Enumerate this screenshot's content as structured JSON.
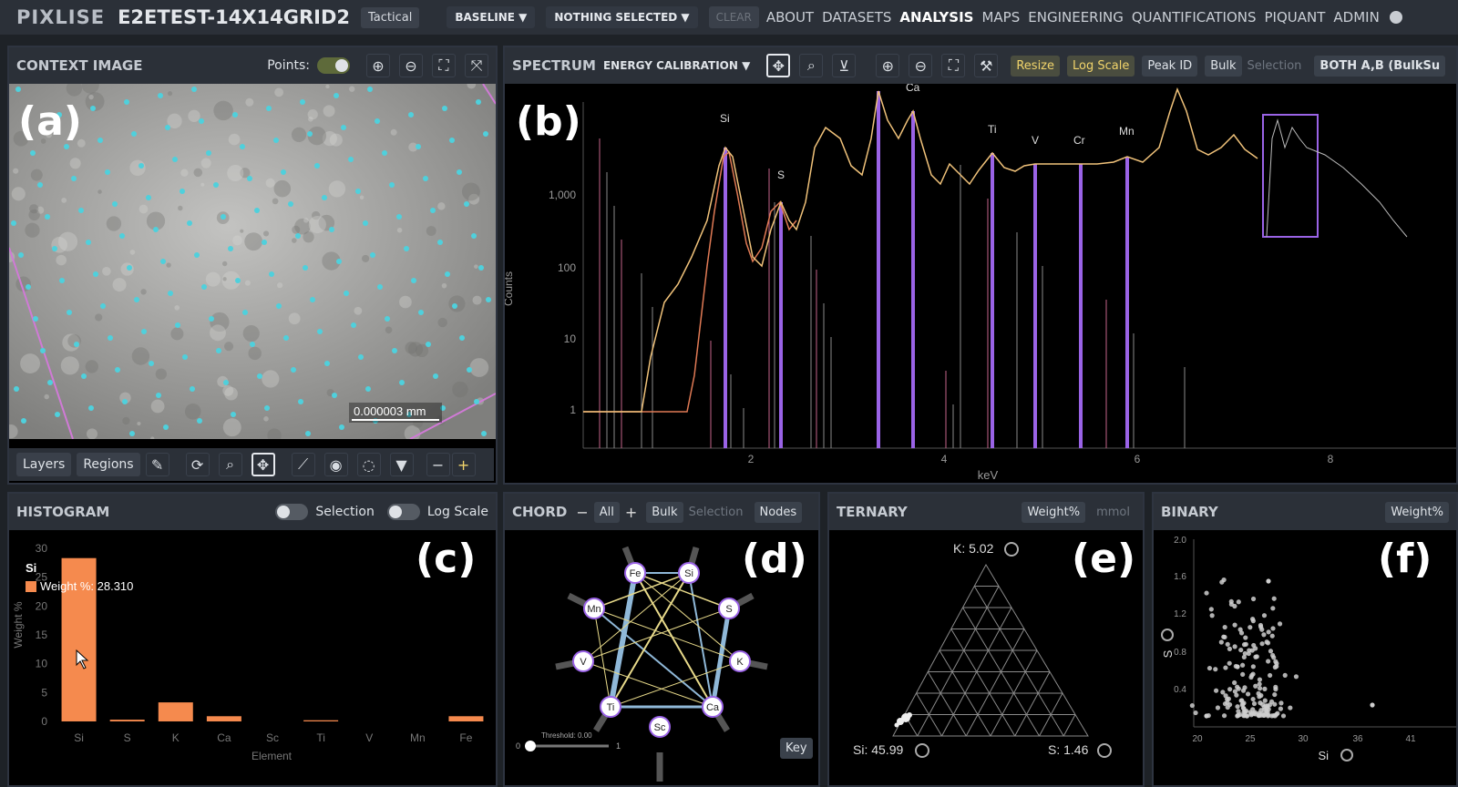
{
  "topbar": {
    "brand": "PIXLISE",
    "dataset": "E2ETEST-14X14GRID2",
    "tactical": "Tactical",
    "baseline": "BASELINE ▼",
    "selection": "NOTHING SELECTED ▼",
    "clear": "CLEAR",
    "nav": [
      "ABOUT",
      "DATASETS",
      "ANALYSIS",
      "MAPS",
      "ENGINEERING",
      "QUANTIFICATIONS",
      "PIQUANT",
      "ADMIN"
    ],
    "active_nav": "ANALYSIS"
  },
  "context": {
    "title": "CONTEXT IMAGE",
    "points_label": "Points:",
    "scale": "0.000003 mm",
    "label": "(a)",
    "layers": "Layers",
    "regions": "Regions"
  },
  "spectrum": {
    "title": "SPECTRUM",
    "energy_cal": "ENERGY CALIBRATION ▼",
    "resize": "Resize",
    "log_scale": "Log Scale",
    "peak_id": "Peak ID",
    "bulk": "Bulk",
    "selection": "Selection",
    "both": "BOTH A,B (BulkSu",
    "label": "(b)",
    "ylabel": "Counts",
    "xlabel": "keV",
    "yticks": [
      "1,000",
      "100",
      "10",
      "1"
    ],
    "xticks": [
      "2",
      "4",
      "6",
      "8"
    ],
    "peaks": [
      "Si",
      "S",
      "Ca",
      "Ti",
      "V",
      "Cr",
      "Mn"
    ]
  },
  "histogram": {
    "title": "HISTOGRAM",
    "selection": "Selection",
    "log_scale": "Log Scale",
    "label": "(c)",
    "tooltip_title": "Si",
    "tooltip_value": "Weight %: 28.310",
    "ylabel": "Weight %",
    "xlabel": "Element"
  },
  "chord": {
    "title": "CHORD",
    "all": "All",
    "bulk": "Bulk",
    "selection": "Selection",
    "nodes": "Nodes",
    "label": "(d)",
    "threshold": "Threshold: 0.00",
    "slider_min": "0",
    "slider_max": "1",
    "key": "Key",
    "node_labels": [
      "Fe",
      "Si",
      "S",
      "K",
      "Ca",
      "Sc",
      "Ti",
      "V",
      "Mn"
    ]
  },
  "ternary": {
    "title": "TERNARY",
    "weight": "Weight%",
    "mmol": "mmol",
    "label": "(e)",
    "top": "K: 5.02",
    "left": "Si: 45.99",
    "right": "S: 1.46"
  },
  "binary": {
    "title": "BINARY",
    "weight": "Weight%",
    "label": "(f)",
    "yaxis": "S",
    "xaxis": "Si",
    "yticks": [
      "2.0",
      "1.6",
      "1.2",
      "0.8",
      "0.4"
    ],
    "xticks": [
      "20",
      "25",
      "30",
      "36",
      "41"
    ]
  },
  "chart_data": [
    {
      "type": "bar",
      "categories": [
        "Si",
        "S",
        "K",
        "Ca",
        "Sc",
        "Ti",
        "V",
        "Mn",
        "Fe"
      ],
      "values": [
        28.31,
        0.3,
        3.3,
        0.9,
        0.0,
        0.2,
        0.0,
        0.0,
        0.9
      ],
      "xlabel": "Element",
      "ylabel": "Weight %",
      "ylim": [
        0,
        30
      ],
      "yticks": [
        "0",
        "5",
        "10",
        "15",
        "20",
        "25",
        "30"
      ]
    }
  ],
  "colors": {
    "accent_purple": "#9a63e6",
    "spectrum_yellow": "#f0c27a",
    "histogram_orange": "#f58a4e",
    "scatter_cyan": "#4fd0dc"
  }
}
